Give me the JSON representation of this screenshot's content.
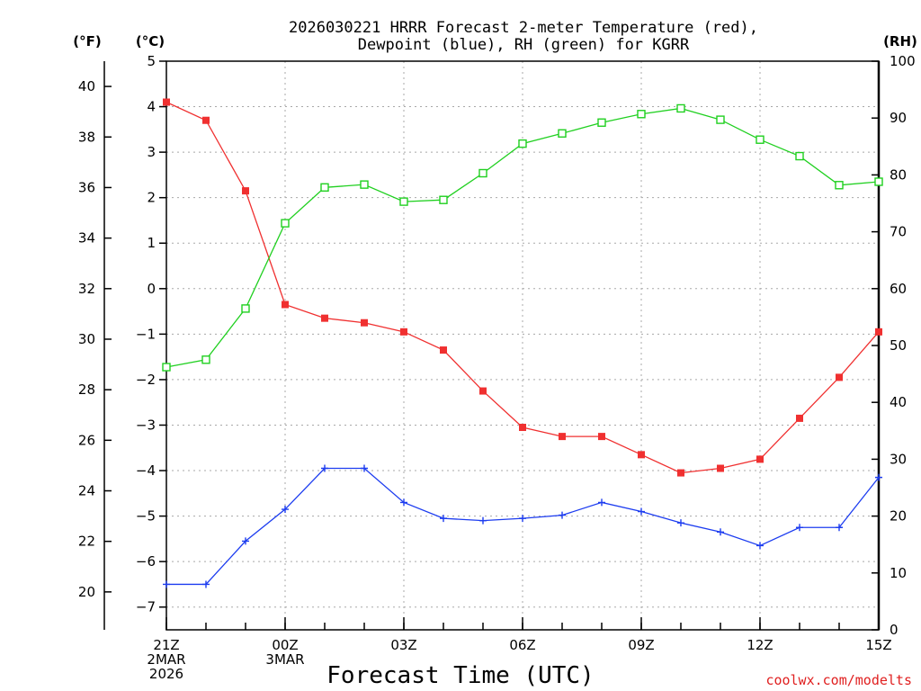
{
  "chart_data": {
    "type": "line",
    "title_line1": "2026030221 HRRR Forecast 2-meter Temperature (red),",
    "title_line2": "Dewpoint (blue), RH (green) for KGRR",
    "left_outer_axis_label": "(°F)",
    "left_axis_label": "(°C)",
    "right_axis_label": "(RH)",
    "xlabel": "Forecast Time (UTC)",
    "credit": "coolwx.com/modelts",
    "celsius_range": [
      -7.5,
      5
    ],
    "celsius_ticks": [
      5,
      4,
      3,
      2,
      1,
      0,
      -1,
      -2,
      -3,
      -4,
      -5,
      -6,
      -7
    ],
    "fahrenheit_ticks": [
      40,
      38,
      36,
      34,
      32,
      30,
      28,
      26,
      24,
      22,
      20
    ],
    "rh_range": [
      0,
      100
    ],
    "rh_ticks": [
      100,
      90,
      80,
      70,
      60,
      50,
      40,
      30,
      20,
      10,
      0
    ],
    "x_hours": [
      0,
      1,
      2,
      3,
      4,
      5,
      6,
      7,
      8,
      9,
      10,
      11,
      12,
      13,
      14,
      15,
      16,
      17,
      18
    ],
    "x_tick_labels": [
      {
        "hour": 0,
        "lines": [
          "21Z",
          "2MAR",
          "2026"
        ]
      },
      {
        "hour": 3,
        "lines": [
          "00Z",
          "3MAR"
        ]
      },
      {
        "hour": 6,
        "lines": [
          "03Z"
        ]
      },
      {
        "hour": 9,
        "lines": [
          "06Z"
        ]
      },
      {
        "hour": 12,
        "lines": [
          "09Z"
        ]
      },
      {
        "hour": 15,
        "lines": [
          "12Z"
        ]
      },
      {
        "hour": 18,
        "lines": [
          "15Z"
        ]
      }
    ],
    "series": [
      {
        "name": "Temperature",
        "unit": "C",
        "color": "#f03030",
        "marker": "filled-square",
        "values": [
          4.1,
          3.7,
          2.15,
          -0.35,
          -0.65,
          -0.75,
          -0.95,
          -1.35,
          -2.25,
          -3.05,
          -3.25,
          -3.25,
          -3.65,
          -4.05,
          -3.95,
          -3.75,
          -2.85,
          -1.95,
          -0.95
        ]
      },
      {
        "name": "Dewpoint",
        "unit": "C",
        "color": "#1c3cf0",
        "marker": "plus",
        "values": [
          -6.5,
          -6.5,
          -5.55,
          -4.85,
          -3.95,
          -3.95,
          -4.7,
          -5.05,
          -5.1,
          -5.05,
          -4.98,
          -4.7,
          -4.9,
          -5.15,
          -5.35,
          -5.65,
          -5.25,
          -5.25,
          -4.15
        ]
      },
      {
        "name": "Relative Humidity",
        "unit": "%",
        "color": "#20d020",
        "marker": "open-square",
        "values": [
          46.2,
          47.5,
          56.5,
          71.5,
          77.8,
          78.3,
          75.3,
          75.6,
          80.3,
          85.5,
          87.3,
          89.2,
          90.7,
          91.7,
          89.7,
          86.2,
          83.3,
          78.2,
          78.8
        ]
      }
    ]
  }
}
